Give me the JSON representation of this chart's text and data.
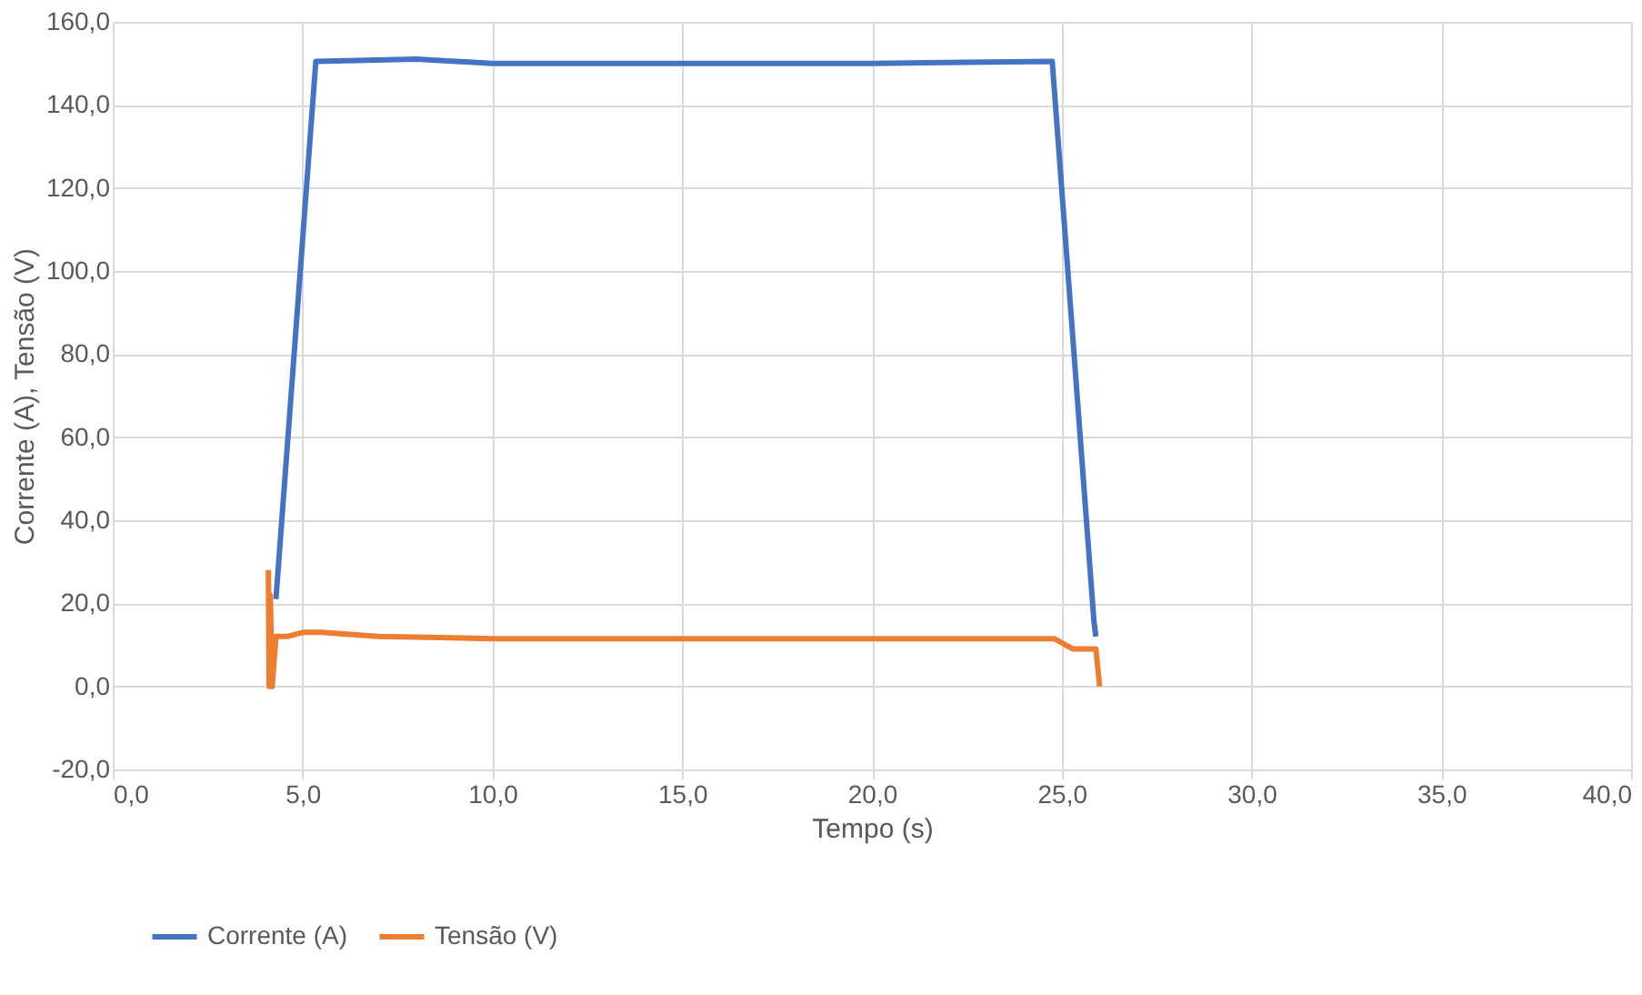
{
  "chart_data": {
    "type": "line",
    "xlabel": "Tempo  (s)",
    "ylabel": "Corrente  (A), Tensão (V)",
    "xlim": [
      0,
      40
    ],
    "ylim": [
      -20,
      160
    ],
    "xticks": [
      {
        "value": 0,
        "label": "0,0"
      },
      {
        "value": 5,
        "label": "5,0"
      },
      {
        "value": 10,
        "label": "10,0"
      },
      {
        "value": 15,
        "label": "15,0"
      },
      {
        "value": 20,
        "label": "20,0"
      },
      {
        "value": 25,
        "label": "25,0"
      },
      {
        "value": 30,
        "label": "30,0"
      },
      {
        "value": 35,
        "label": "35,0"
      },
      {
        "value": 40,
        "label": "40,0"
      }
    ],
    "yticks": [
      {
        "value": -20,
        "label": "-20,0"
      },
      {
        "value": 0,
        "label": "0,0"
      },
      {
        "value": 20,
        "label": "20,0"
      },
      {
        "value": 40,
        "label": "40,0"
      },
      {
        "value": 60,
        "label": "60,0"
      },
      {
        "value": 80,
        "label": "80,0"
      },
      {
        "value": 100,
        "label": "100,0"
      },
      {
        "value": 120,
        "label": "120,0"
      },
      {
        "value": 140,
        "label": "140,0"
      },
      {
        "value": 160,
        "label": "160,0"
      }
    ],
    "grid": true,
    "legend": "bottom",
    "marker": "none",
    "line_style": "solid",
    "series": [
      {
        "name": "Corrente (A)",
        "color": "#4472c4",
        "x": [
          4.3,
          5.35,
          8,
          10,
          15,
          20,
          24.75,
          25.85,
          25.9
        ],
        "values": [
          21,
          150.5,
          151,
          150,
          150,
          150,
          150.5,
          15.6,
          12
        ]
      },
      {
        "name": "Tensão (V)",
        "color": "#ed7d31",
        "x": [
          4.1,
          4.12,
          4.15,
          4.2,
          4.3,
          4.6,
          5.0,
          5.5,
          7,
          10,
          15,
          20,
          24.8,
          25.3,
          25.9,
          26.0
        ],
        "values": [
          28,
          0,
          22,
          0,
          12,
          12,
          13,
          13,
          12,
          11.5,
          11.5,
          11.5,
          11.5,
          9,
          9,
          0
        ]
      }
    ]
  }
}
